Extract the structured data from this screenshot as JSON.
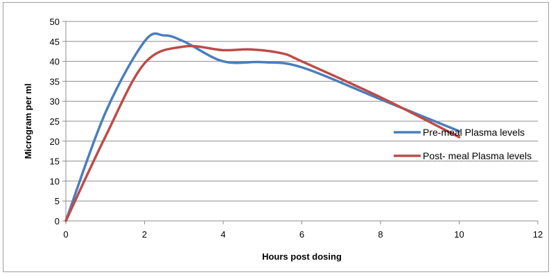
{
  "chart_data": {
    "type": "line",
    "title": "",
    "xlabel": "Hours post dosing",
    "ylabel": "Microgram per ml",
    "xlim": [
      0,
      12
    ],
    "ylim": [
      0,
      50
    ],
    "xticks": [
      0,
      2,
      4,
      6,
      8,
      10,
      12
    ],
    "yticks": [
      0,
      5,
      10,
      15,
      20,
      25,
      30,
      35,
      40,
      45,
      50
    ],
    "grid": "horizontal",
    "legend_position": "right",
    "series": [
      {
        "name": "Pre-meal Plasma levels",
        "color": "#4a7ebb",
        "x": [
          0,
          1,
          2,
          2.5,
          3,
          4,
          5,
          6,
          8,
          10
        ],
        "y": [
          0,
          27,
          45,
          46.5,
          45,
          40,
          39.8,
          38.5,
          30.5,
          22.5
        ]
      },
      {
        "name": "Post- meal Plasma levels",
        "color": "#be4b48",
        "x": [
          0,
          1,
          2,
          3,
          4,
          4.7,
          5.5,
          6,
          8,
          10
        ],
        "y": [
          0,
          21,
          39.5,
          43.7,
          42.8,
          43,
          42,
          40,
          31,
          21
        ]
      }
    ]
  }
}
